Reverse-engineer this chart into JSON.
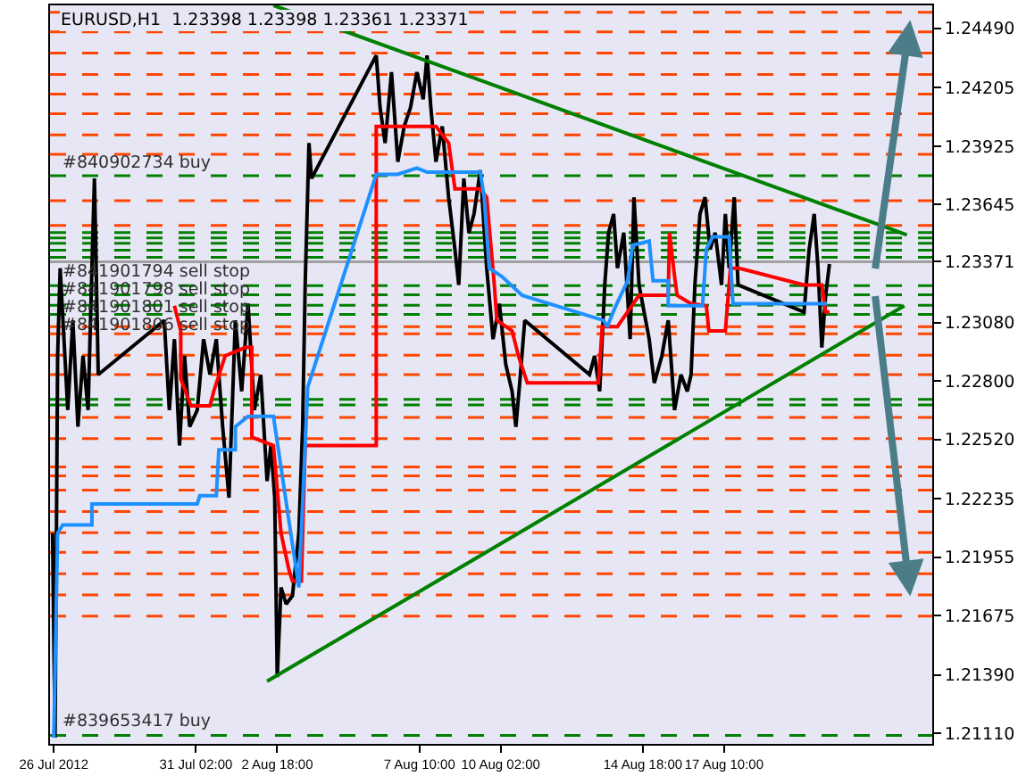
{
  "chart_data": {
    "type": "line",
    "title": "EURUSD,H1  1.23398 1.23398 1.23361 1.23371",
    "xlim": [
      "2012-07-26T07:00",
      "2012-08-24T06:00"
    ],
    "xticks": [
      {
        "value": "2012-07-26T10:00",
        "label": "26 Jul 2012"
      },
      {
        "value": "2012-07-31T02:00",
        "label": "31 Jul 02:00"
      },
      {
        "value": "2012-08-02T18:00",
        "label": "2 Aug 18:00"
      },
      {
        "value": "2012-08-07T10:00",
        "label": "7 Aug 10:00"
      },
      {
        "value": "2012-08-10T02:00",
        "label": "10 Aug 02:00"
      },
      {
        "value": "2012-08-14T18:00",
        "label": "14 Aug 18:00"
      },
      {
        "value": "2012-08-17T10:00",
        "label": "17 Aug 10:00"
      }
    ],
    "ylim": [
      1.2106,
      1.246
    ],
    "yticks": [
      {
        "value": 1.2449,
        "label": "1.24490"
      },
      {
        "value": 1.24205,
        "label": "1.24205"
      },
      {
        "value": 1.23925,
        "label": "1.23925"
      },
      {
        "value": 1.23645,
        "label": "1.23645"
      },
      {
        "value": 1.23371,
        "label": "1.23371"
      },
      {
        "value": 1.2308,
        "label": "1.23080"
      },
      {
        "value": 1.228,
        "label": "1.22800"
      },
      {
        "value": 1.2252,
        "label": "1.22520"
      },
      {
        "value": 1.22235,
        "label": "1.22235"
      },
      {
        "value": 1.21955,
        "label": "1.21955"
      },
      {
        "value": 1.21675,
        "label": "1.21675"
      },
      {
        "value": 1.2139,
        "label": "1.21390"
      },
      {
        "value": 1.2111,
        "label": "1.21110"
      }
    ],
    "grid": false,
    "marker": "none",
    "line_style": "solid",
    "series": [
      {
        "color": "#000000",
        "x": [
          "2012-07-26T09:00",
          "2012-07-26T11:00",
          "2012-07-26T13:00",
          "2012-07-26T15:00",
          "2012-07-26T18:00",
          "2012-07-26T21:00",
          "2012-07-27T01:00",
          "2012-07-27T05:00",
          "2012-07-27T09:00",
          "2012-07-27T13:00",
          "2012-07-27T16:00",
          "2012-07-27T18:00",
          "2012-07-27T21:00",
          "2012-07-30T01:00",
          "2012-07-30T05:00",
          "2012-07-30T09:00",
          "2012-07-30T13:00",
          "2012-07-30T17:00",
          "2012-07-30T21:00",
          "2012-07-31T03:00",
          "2012-07-31T08:00",
          "2012-07-31T13:00",
          "2012-07-31T18:00",
          "2012-07-31T23:00",
          "2012-08-01T04:00",
          "2012-08-01T09:00",
          "2012-08-01T14:00",
          "2012-08-01T19:00",
          "2012-08-02T00:00",
          "2012-08-02T05:00",
          "2012-08-02T10:00",
          "2012-08-02T13:00",
          "2012-08-02T16:00",
          "2012-08-02T18:00",
          "2012-08-02T21:00",
          "2012-08-03T01:00",
          "2012-08-03T06:00",
          "2012-08-03T11:00",
          "2012-08-03T14:00",
          "2012-08-03T16:00",
          "2012-08-03T19:00",
          "2012-08-03T21:00",
          "2012-08-06T00:00",
          "2012-08-06T03:00",
          "2012-08-06T07:00",
          "2012-08-06T12:00",
          "2012-08-06T17:00",
          "2012-08-06T22:00",
          "2012-08-07T03:00",
          "2012-08-07T08:00",
          "2012-08-07T13:00",
          "2012-08-07T16:00",
          "2012-08-07T19:00",
          "2012-08-07T23:00",
          "2012-08-08T04:00",
          "2012-08-08T09:00",
          "2012-08-08T14:00",
          "2012-08-08T17:00",
          "2012-08-08T21:00",
          "2012-08-09T01:00",
          "2012-08-09T05:00",
          "2012-08-09T10:00",
          "2012-08-09T15:00",
          "2012-08-09T20:00",
          "2012-08-10T01:00",
          "2012-08-10T06:00",
          "2012-08-10T11:00",
          "2012-08-10T14:00",
          "2012-08-10T17:00",
          "2012-08-10T21:00",
          "2012-08-13T00:00",
          "2012-08-13T04:00",
          "2012-08-13T08:00",
          "2012-08-13T12:00",
          "2012-08-13T15:00",
          "2012-08-13T19:00",
          "2012-08-13T22:00",
          "2012-08-14T03:00",
          "2012-08-14T08:00",
          "2012-08-14T11:00",
          "2012-08-14T15:00",
          "2012-08-14T19:00",
          "2012-08-14T23:00",
          "2012-08-15T03:00",
          "2012-08-15T09:00",
          "2012-08-15T14:00",
          "2012-08-15T19:00",
          "2012-08-16T00:00",
          "2012-08-16T05:00",
          "2012-08-16T08:00",
          "2012-08-16T11:00",
          "2012-08-16T15:00",
          "2012-08-16T19:00",
          "2012-08-16T23:00",
          "2012-08-17T03:00",
          "2012-08-17T08:00",
          "2012-08-17T11:00",
          "2012-08-17T14:00",
          "2012-08-17T18:00",
          "2012-08-17T21:00",
          "2012-08-20T01:00",
          "2012-08-20T05:00",
          "2012-08-20T09:00",
          "2012-08-20T12:00",
          "2012-08-20T15:00",
          "2012-08-20T18:00",
          "2012-08-20T21:00"
        ],
        "values": [
          1.2207,
          1.2109,
          1.2292,
          1.2334,
          1.23,
          1.2266,
          1.2309,
          1.2258,
          1.2292,
          1.2266,
          1.2334,
          1.2377,
          1.2283,
          1.2309,
          1.2266,
          1.23,
          1.2249,
          1.2292,
          1.2258,
          1.2266,
          1.23,
          1.2283,
          1.23,
          1.2258,
          1.2224,
          1.2309,
          1.2275,
          1.2317,
          1.2266,
          1.2283,
          1.2232,
          1.2249,
          1.2224,
          1.2138,
          1.2181,
          1.2173,
          1.2177,
          1.2207,
          1.2258,
          1.2326,
          1.2394,
          1.2377,
          1.2436,
          1.2411,
          1.2394,
          1.2428,
          1.2385,
          1.2402,
          1.2411,
          1.2428,
          1.2415,
          1.2436,
          1.2411,
          1.2385,
          1.2402,
          1.2368,
          1.2343,
          1.2326,
          1.2377,
          1.2351,
          1.236,
          1.2381,
          1.2334,
          1.23,
          1.2317,
          1.2288,
          1.2275,
          1.2258,
          1.2279,
          1.2309,
          1.2283,
          1.2292,
          1.2275,
          1.2326,
          1.2351,
          1.236,
          1.2334,
          1.2351,
          1.23,
          1.2368,
          1.2326,
          1.2313,
          1.23,
          1.2279,
          1.2292,
          1.2309,
          1.2266,
          1.2283,
          1.2275,
          1.2283,
          1.2326,
          1.236,
          1.2368,
          1.2343,
          1.2351,
          1.2326,
          1.236,
          1.2334,
          1.2368,
          1.2326,
          1.2313,
          1.2343,
          1.236,
          1.2334,
          1.2296,
          1.2321,
          1.2336
        ]
      },
      {
        "color": "#ff0000",
        "x": [
          "2012-07-30T09:00",
          "2012-07-30T14:00",
          "2012-07-30T14:00",
          "2012-07-30T22:00",
          "2012-07-31T13:00",
          "2012-07-31T16:00",
          "2012-08-01T01:00",
          "2012-08-01T17:00",
          "2012-08-01T22:00",
          "2012-08-01T22:00",
          "2012-08-02T15:00",
          "2012-08-02T21:00",
          "2012-08-03T03:00",
          "2012-08-03T06:00",
          "2012-08-03T13:00",
          "2012-08-03T16:00",
          "2012-08-06T00:00",
          "2012-08-06T00:00",
          "2012-08-07T23:00",
          "2012-08-08T09:00",
          "2012-08-08T14:00",
          "2012-08-09T10:00",
          "2012-08-09T15:00",
          "2012-08-09T21:00",
          "2012-08-09T23:00",
          "2012-08-10T11:00",
          "2012-08-10T16:00",
          "2012-08-10T23:00",
          "2012-08-13T07:00",
          "2012-08-13T10:00",
          "2012-08-13T22:00",
          "2012-08-14T15:00",
          "2012-08-15T14:00",
          "2012-08-15T15:00",
          "2012-08-15T19:00",
          "2012-08-15T21:00",
          "2012-08-16T08:00",
          "2012-08-16T20:00",
          "2012-08-16T22:00",
          "2012-08-17T11:00",
          "2012-08-17T15:00",
          "2012-08-17T22:00",
          "2012-08-20T01:00",
          "2012-08-20T15:00",
          "2012-08-20T18:00",
          "2012-08-20T21:00"
        ],
        "values": [
          1.2316,
          1.2304,
          1.2281,
          1.2268,
          1.2268,
          1.2275,
          1.2292,
          1.2296,
          1.2296,
          1.2253,
          1.2249,
          1.2207,
          1.219,
          1.2184,
          1.2184,
          1.2249,
          1.2249,
          1.2402,
          1.2402,
          1.2394,
          1.2372,
          1.2372,
          1.2368,
          1.2326,
          1.2309,
          1.2304,
          1.2292,
          1.2279,
          1.2279,
          1.2306,
          1.2306,
          1.2321,
          1.2321,
          1.2351,
          1.233,
          1.2321,
          1.2317,
          1.2316,
          1.2304,
          1.2304,
          1.2334,
          1.2334,
          1.2326,
          1.2326,
          1.2313,
          1.2313
        ]
      },
      {
        "color": "#1e90ff",
        "x": [
          "2012-07-26T10:00",
          "2012-07-26T13:00",
          "2012-07-26T17:00",
          "2012-07-27T16:00",
          "2012-07-27T16:00",
          "2012-07-31T03:00",
          "2012-07-31T05:00",
          "2012-07-31T18:00",
          "2012-07-31T20:00",
          "2012-08-01T09:00",
          "2012-08-01T09:00",
          "2012-08-01T19:00",
          "2012-08-02T15:00",
          "2012-08-03T11:00",
          "2012-08-03T16:00",
          "2012-08-03T18:00",
          "2012-08-06T00:00",
          "2012-08-06T17:00",
          "2012-08-07T08:00",
          "2012-08-07T16:00",
          "2012-08-09T10:00",
          "2012-08-09T13:00",
          "2012-08-09T17:00",
          "2012-08-10T03:00",
          "2012-08-10T19:00",
          "2012-08-13T11:00",
          "2012-08-13T14:00",
          "2012-08-13T20:00",
          "2012-08-14T06:00",
          "2012-08-14T10:00",
          "2012-08-14T23:00",
          "2012-08-15T02:00",
          "2012-08-15T14:00",
          "2012-08-15T14:00",
          "2012-08-16T17:00",
          "2012-08-16T20:00",
          "2012-08-17T01:00",
          "2012-08-17T14:00",
          "2012-08-17T17:00",
          "2012-08-20T19:00"
        ],
        "values": [
          1.2109,
          1.2207,
          1.2211,
          1.2211,
          1.2221,
          1.2221,
          1.2225,
          1.2225,
          1.2247,
          1.2247,
          1.2258,
          1.2263,
          1.2263,
          1.2181,
          1.2249,
          1.2277,
          1.2379,
          1.2379,
          1.2382,
          1.238,
          1.238,
          1.2368,
          1.2334,
          1.233,
          1.2321,
          1.2309,
          1.2306,
          1.2315,
          1.2328,
          1.2345,
          1.2347,
          1.2328,
          1.2328,
          1.2316,
          1.2316,
          1.2343,
          1.2349,
          1.2349,
          1.2317,
          1.2317
        ]
      },
      {
        "color": "#008000",
        "x": [
          "2012-08-02T15:00",
          "2012-08-23T10:00"
        ],
        "values": [
          1.246,
          1.235
        ]
      },
      {
        "color": "#008000",
        "x": [
          "2012-08-02T10:00",
          "2012-08-23T08:00"
        ],
        "values": [
          1.2136,
          1.2316
        ]
      }
    ],
    "ref_lines": [
      {
        "axis": "y",
        "value": 1.24567,
        "color": "#ff4500",
        "line_style": "dashed"
      },
      {
        "axis": "y",
        "value": 1.24473,
        "color": "#ff4500",
        "line_style": "dashed"
      },
      {
        "axis": "y",
        "value": 1.24371,
        "color": "#ff4500",
        "line_style": "dashed"
      },
      {
        "axis": "y",
        "value": 1.24269,
        "color": "#ff4500",
        "line_style": "dashed"
      },
      {
        "axis": "y",
        "value": 1.24175,
        "color": "#ff4500",
        "line_style": "dashed"
      },
      {
        "axis": "y",
        "value": 1.24081,
        "color": "#ff4500",
        "line_style": "dashed"
      },
      {
        "axis": "y",
        "value": 1.23979,
        "color": "#ff4500",
        "line_style": "dashed"
      },
      {
        "axis": "y",
        "value": 1.23886,
        "color": "#ff4500",
        "line_style": "dashed"
      },
      {
        "axis": "y",
        "value": 1.23783,
        "color": "#008000",
        "line_style": "dashed",
        "label": "#840902734 buy"
      },
      {
        "axis": "y",
        "value": 1.23664,
        "color": "#ff4500",
        "line_style": "dashed"
      },
      {
        "axis": "y",
        "value": 1.23545,
        "color": "#ff4500",
        "line_style": "dashed"
      },
      {
        "axis": "y",
        "value": 1.23511,
        "color": "#008000",
        "line_style": "dashed"
      },
      {
        "axis": "y",
        "value": 1.23485,
        "color": "#008000",
        "line_style": "dashed"
      },
      {
        "axis": "y",
        "value": 1.2346,
        "color": "#008000",
        "line_style": "dashed"
      },
      {
        "axis": "y",
        "value": 1.23426,
        "color": "#008000",
        "line_style": "dashed"
      },
      {
        "axis": "y",
        "value": 1.23392,
        "color": "#008000",
        "line_style": "dashed"
      },
      {
        "axis": "y",
        "value": 1.23371,
        "color": "#a0a0a0",
        "line_style": "solid"
      },
      {
        "axis": "y",
        "value": 1.23256,
        "color": "#008000",
        "line_style": "dashed",
        "label": "#841901794 sell stop"
      },
      {
        "axis": "y",
        "value": 1.23213,
        "color": "#008000",
        "line_style": "dashed",
        "label": "#841901798 sell stop"
      },
      {
        "axis": "y",
        "value": 1.23162,
        "color": "#008000",
        "line_style": "dashed",
        "label": "#841901801 sell stop"
      },
      {
        "axis": "y",
        "value": 1.23119,
        "color": "#008000",
        "line_style": "dashed",
        "label": "#841901806 sell stop"
      },
      {
        "axis": "y",
        "value": 1.2306,
        "color": "#ff4500",
        "line_style": "dashed"
      },
      {
        "axis": "y",
        "value": 1.23026,
        "color": "#ff4500",
        "line_style": "dashed"
      },
      {
        "axis": "y",
        "value": 1.22923,
        "color": "#ff4500",
        "line_style": "dashed"
      },
      {
        "axis": "y",
        "value": 1.2283,
        "color": "#ff4500",
        "line_style": "dashed"
      },
      {
        "axis": "y",
        "value": 1.22711,
        "color": "#008000",
        "line_style": "dashed"
      },
      {
        "axis": "y",
        "value": 1.22685,
        "color": "#008000",
        "line_style": "dashed"
      },
      {
        "axis": "y",
        "value": 1.22625,
        "color": "#ff4500",
        "line_style": "dashed"
      },
      {
        "axis": "y",
        "value": 1.22523,
        "color": "#ff4500",
        "line_style": "dashed"
      },
      {
        "axis": "y",
        "value": 1.22387,
        "color": "#ff4500",
        "line_style": "dashed"
      },
      {
        "axis": "y",
        "value": 1.22345,
        "color": "#ff4500",
        "line_style": "dashed"
      },
      {
        "axis": "y",
        "value": 1.22276,
        "color": "#ff4500",
        "line_style": "dashed"
      },
      {
        "axis": "y",
        "value": 1.22174,
        "color": "#ff4500",
        "line_style": "dashed"
      },
      {
        "axis": "y",
        "value": 1.22072,
        "color": "#ff4500",
        "line_style": "dashed"
      },
      {
        "axis": "y",
        "value": 1.21978,
        "color": "#ff4500",
        "line_style": "dashed"
      },
      {
        "axis": "y",
        "value": 1.21876,
        "color": "#ff4500",
        "line_style": "dashed"
      },
      {
        "axis": "y",
        "value": 1.21774,
        "color": "#ff4500",
        "line_style": "dashed"
      },
      {
        "axis": "y",
        "value": 1.21672,
        "color": "#ff4500",
        "line_style": "dashed"
      },
      {
        "axis": "y",
        "value": 1.21101,
        "color": "#008000",
        "line_style": "dashed",
        "label": "#839653417 buy"
      }
    ]
  }
}
